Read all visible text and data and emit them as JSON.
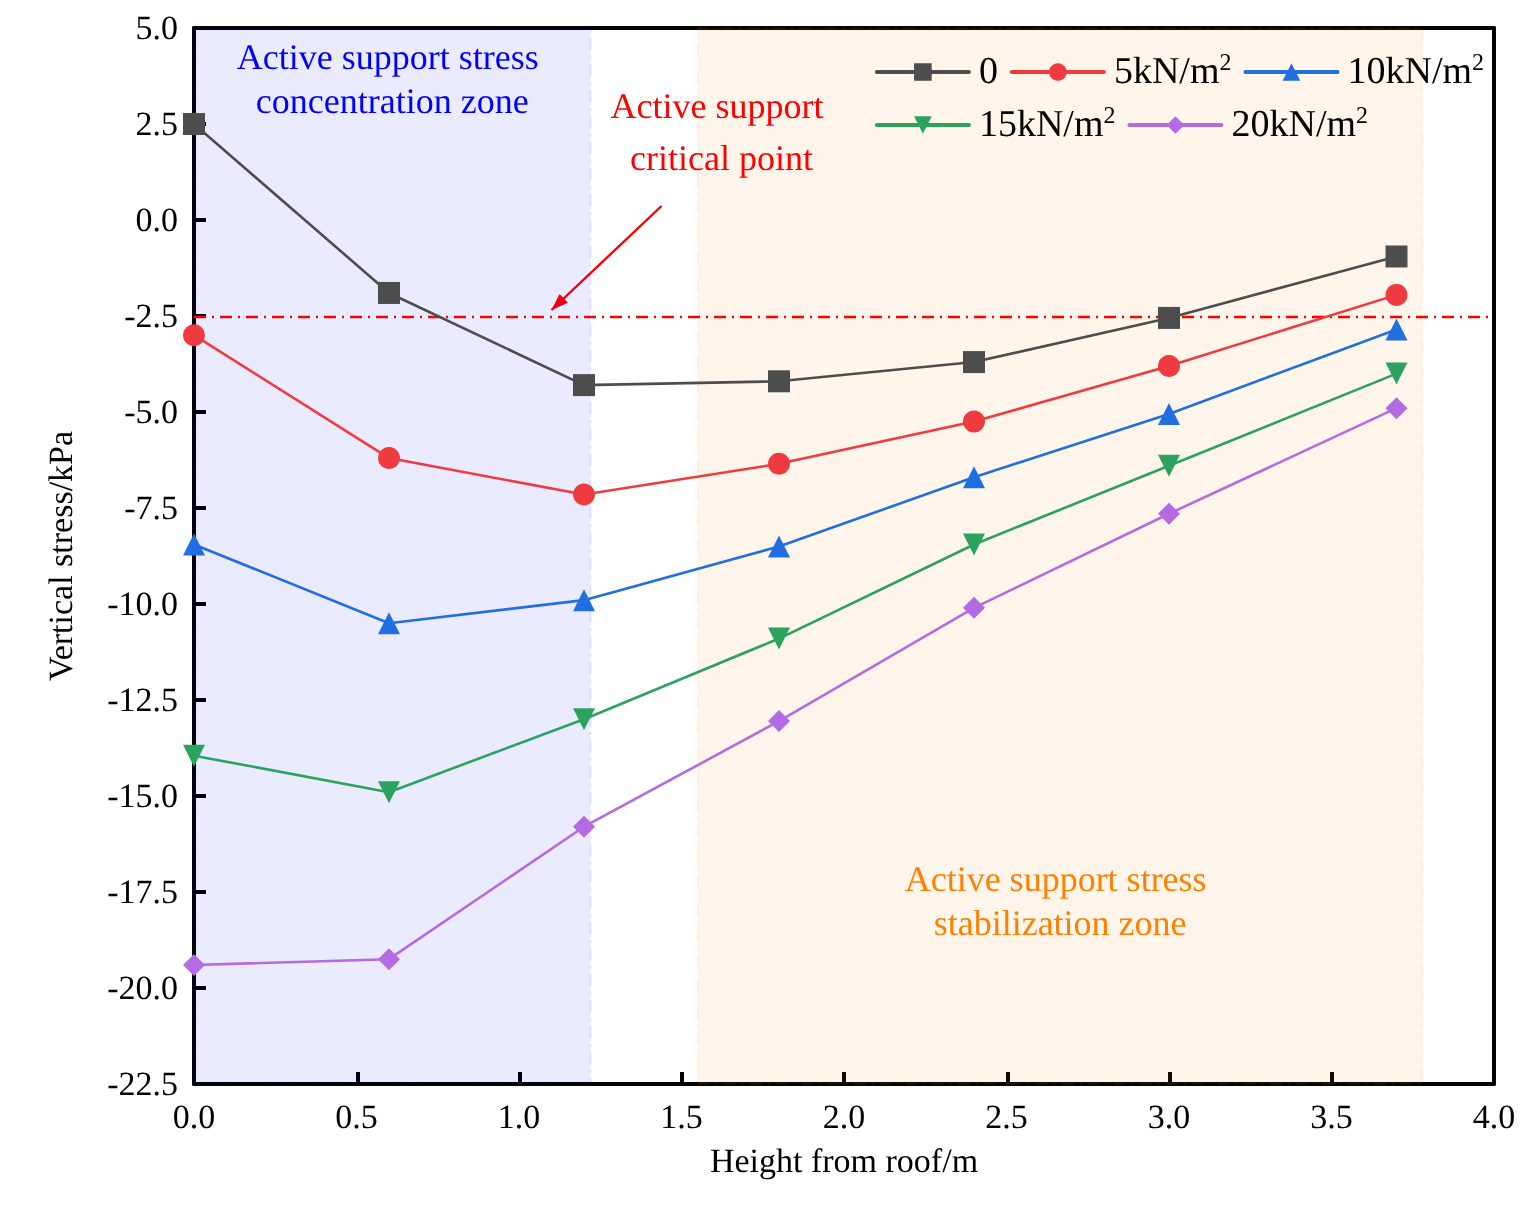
{
  "chart_data": {
    "type": "line",
    "xlabel": "Height from roof/m",
    "ylabel": "Vertical stress/kPa",
    "x": [
      0,
      0.6,
      1.2,
      1.8,
      2.4,
      3.0,
      3.7
    ],
    "series": [
      {
        "name": "0",
        "color": "#4d4d4d",
        "marker": "square",
        "values": [
          2.5,
          -1.9,
          -4.3,
          -4.2,
          -3.7,
          -2.55,
          -0.95
        ]
      },
      {
        "name": "5kN/m$^{2}$",
        "color": "#ef3b3f",
        "marker": "circle",
        "values": [
          -3.0,
          -6.2,
          -7.15,
          -6.35,
          -5.25,
          -3.8,
          -1.95
        ]
      },
      {
        "name": "10kN/m$^{2}$",
        "color": "#1f6fe0",
        "marker": "triangle",
        "values": [
          -8.45,
          -10.5,
          -9.9,
          -8.5,
          -6.7,
          -5.05,
          -2.85
        ]
      },
      {
        "name": "15kN/m$^{2}$",
        "color": "#2ca25f",
        "marker": "triangle-down",
        "values": [
          -13.95,
          -14.9,
          -13.0,
          -10.9,
          -8.45,
          -6.4,
          -4.0
        ]
      },
      {
        "name": "20kN/m$^{2}$",
        "color": "#b36ae2",
        "marker": "diamond",
        "values": [
          -19.4,
          -19.25,
          -15.8,
          -13.05,
          -10.1,
          -7.65,
          -4.9
        ]
      }
    ],
    "xlim": [
      0,
      4.0
    ],
    "xticks": [
      {
        "value": 0,
        "label": "0.0"
      },
      {
        "value": 0.5,
        "label": "0.5"
      },
      {
        "value": 1,
        "label": "1.0"
      },
      {
        "value": 1.5,
        "label": "1.5"
      },
      {
        "value": 2,
        "label": "2.0"
      },
      {
        "value": 2.5,
        "label": "2.5"
      },
      {
        "value": 3,
        "label": "3.0"
      },
      {
        "value": 3.5,
        "label": "3.5"
      },
      {
        "value": 4,
        "label": "4.0"
      }
    ],
    "ylim": [
      -22.5,
      5.0
    ],
    "yticks": [
      {
        "value": -22.5,
        "label": "-22.5"
      },
      {
        "value": -20,
        "label": "-20.0"
      },
      {
        "value": -17.5,
        "label": "-17.5"
      },
      {
        "value": -15,
        "label": "-15.0"
      },
      {
        "value": -12.5,
        "label": "-12.5"
      },
      {
        "value": -10,
        "label": "-10.0"
      },
      {
        "value": -7.5,
        "label": "-7.5"
      },
      {
        "value": -5,
        "label": "-5.0"
      },
      {
        "value": -2.5,
        "label": "-2.5"
      },
      {
        "value": 0,
        "label": "0.0"
      },
      {
        "value": 2.5,
        "label": "2.5"
      },
      {
        "value": 5,
        "label": "5.0"
      }
    ],
    "ref_lines": [
      {
        "axis": "y",
        "value": -2.5,
        "color": "#ff0000",
        "line_style": "dashed"
      }
    ],
    "bands": [
      {
        "axis": "x",
        "from": 0,
        "to": 1.22,
        "label": "Active support stress concentration zone",
        "color": "#0000ff"
      },
      {
        "axis": "x",
        "from": 1.55,
        "to": 3.78,
        "label": "Active support stress stabilization zone",
        "color": "#ff8000"
      }
    ],
    "annotations": [
      {
        "text": "Active support critical point",
        "x": 1.1,
        "y": -2.5
      }
    ],
    "grid": false,
    "legend": "top right",
    "line_style": "solid"
  }
}
